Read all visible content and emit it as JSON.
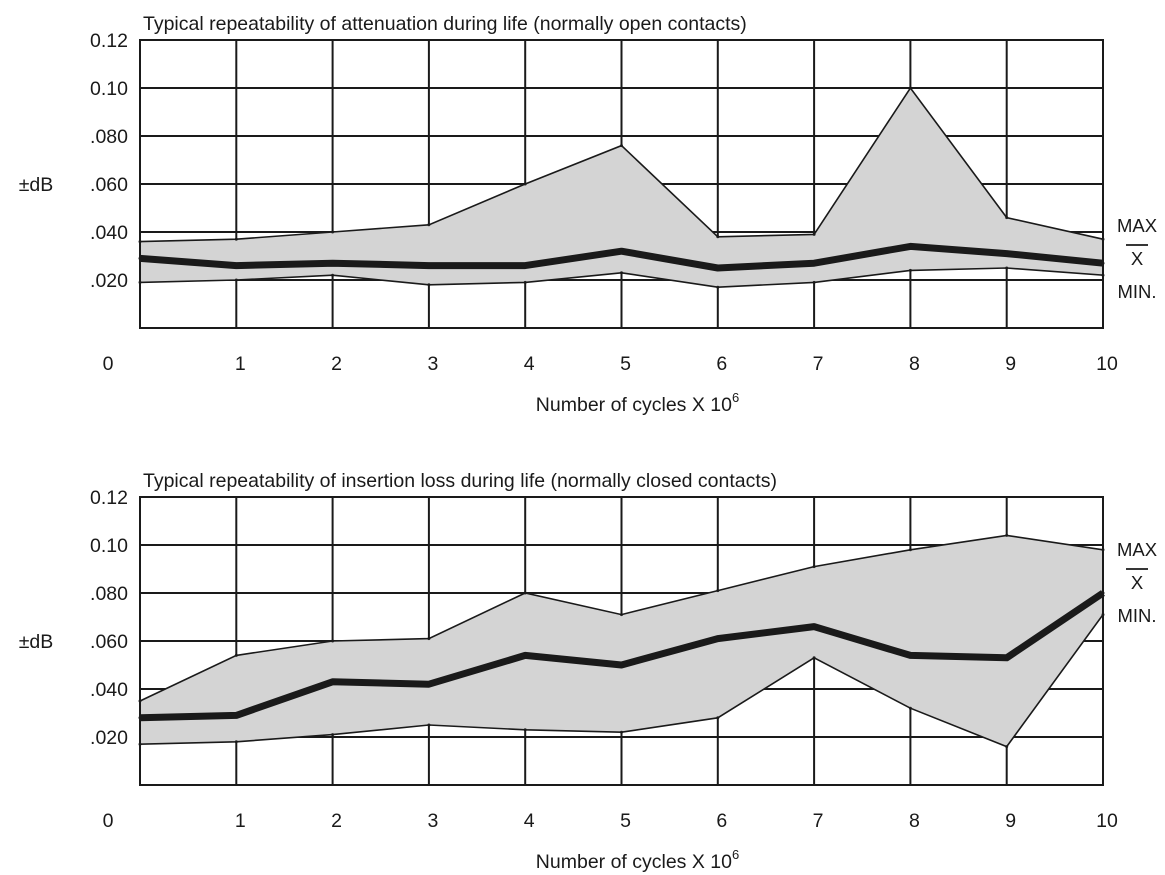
{
  "chart_data": [
    {
      "type": "area",
      "title": "Typical repeatability of attenuation during life (normally open contacts)",
      "xlabel": "Number of cycles X 10",
      "xlabel_exponent": "6",
      "ylabel": "±dB",
      "x_ticks": [
        "0",
        "1",
        "2",
        "3",
        "4",
        "5",
        "6",
        "7",
        "8",
        "9",
        "10"
      ],
      "y_ticks": [
        "0.12",
        "0.10",
        ".080",
        ".060",
        ".040",
        ".020"
      ],
      "xlim": [
        0,
        10
      ],
      "ylim": [
        0,
        0.12
      ],
      "grid": true,
      "legend": [
        "MAX",
        "X",
        "MIN."
      ],
      "legend_placement": "right",
      "x": [
        0,
        1,
        2,
        3,
        4,
        5,
        6,
        7,
        8,
        9,
        10
      ],
      "series": [
        {
          "name": "MAX",
          "values": [
            0.036,
            0.037,
            0.04,
            0.043,
            0.06,
            0.076,
            0.038,
            0.039,
            0.1,
            0.046,
            0.037
          ]
        },
        {
          "name": "X",
          "values": [
            0.029,
            0.026,
            0.027,
            0.026,
            0.026,
            0.032,
            0.025,
            0.027,
            0.034,
            0.031,
            0.027
          ]
        },
        {
          "name": "MIN.",
          "values": [
            0.019,
            0.02,
            0.022,
            0.018,
            0.019,
            0.023,
            0.017,
            0.019,
            0.024,
            0.025,
            0.022
          ]
        }
      ]
    },
    {
      "type": "area",
      "title": "Typical repeatability of insertion loss during life (normally closed contacts)",
      "xlabel": "Number of cycles X 10",
      "xlabel_exponent": "6",
      "ylabel": "±dB",
      "x_ticks": [
        "0",
        "1",
        "2",
        "3",
        "4",
        "5",
        "6",
        "7",
        "8",
        "9",
        "10"
      ],
      "y_ticks": [
        "0.12",
        "0.10",
        ".080",
        ".060",
        ".040",
        ".020"
      ],
      "xlim": [
        0,
        10
      ],
      "ylim": [
        0,
        0.12
      ],
      "grid": true,
      "legend": [
        "MAX",
        "X",
        "MIN."
      ],
      "legend_placement": "right",
      "x": [
        0,
        1,
        2,
        3,
        4,
        5,
        6,
        7,
        8,
        9,
        10
      ],
      "series": [
        {
          "name": "MAX",
          "values": [
            0.035,
            0.054,
            0.06,
            0.061,
            0.08,
            0.071,
            0.081,
            0.091,
            0.098,
            0.104,
            0.098
          ]
        },
        {
          "name": "X",
          "values": [
            0.028,
            0.029,
            0.043,
            0.042,
            0.054,
            0.05,
            0.061,
            0.066,
            0.054,
            0.053,
            0.08
          ]
        },
        {
          "name": "MIN.",
          "values": [
            0.017,
            0.018,
            0.021,
            0.025,
            0.023,
            0.022,
            0.028,
            0.053,
            0.032,
            0.016,
            0.071
          ]
        }
      ]
    }
  ]
}
